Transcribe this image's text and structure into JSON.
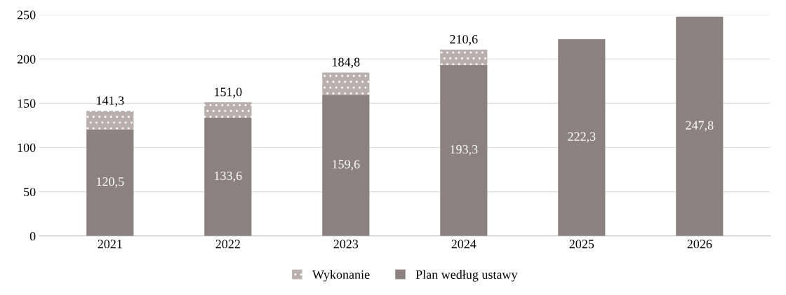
{
  "chart_data": {
    "type": "bar",
    "stacked": true,
    "categories": [
      "2021",
      "2022",
      "2023",
      "2024",
      "2025",
      "2026"
    ],
    "series": [
      {
        "name": "Plan według ustawy",
        "color": "#8c8181",
        "values": [
          120.5,
          133.6,
          159.6,
          193.3,
          222.3,
          247.8
        ],
        "value_labels": [
          "120,5",
          "133,6",
          "159,6",
          "193,3",
          "222,3",
          "247,8"
        ]
      },
      {
        "name": "Wykonanie",
        "color": "#b9afaf",
        "values": [
          20.8,
          17.4,
          25.2,
          17.3,
          null,
          null
        ]
      }
    ],
    "totals": [
      "141,3",
      "151,0",
      "184,8",
      "210,6",
      null,
      null
    ],
    "ylim": [
      0,
      250
    ],
    "yticks": [
      0,
      50,
      100,
      150,
      200,
      250
    ],
    "grid": "y",
    "legend": "bottom"
  }
}
